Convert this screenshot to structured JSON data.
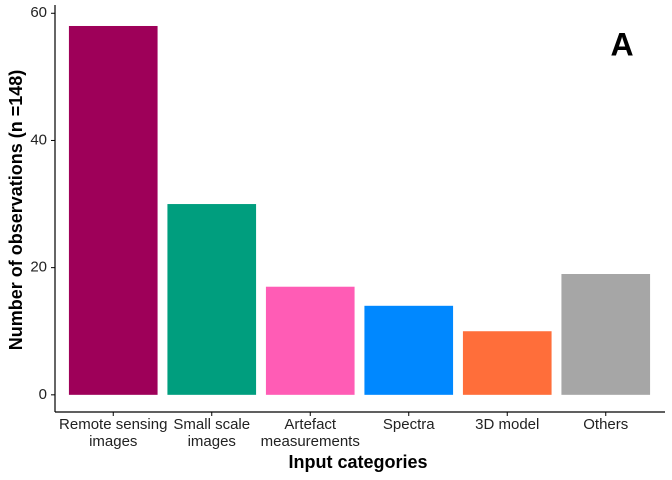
{
  "chart_data": {
    "type": "bar",
    "categories": [
      "Remote sensing\nimages",
      "Small scale\nimages",
      "Artefact\nmeasurements",
      "Spectra",
      "3D model",
      "Others"
    ],
    "values": [
      58,
      30,
      17,
      14,
      10,
      19
    ],
    "colors": [
      "#9e0059",
      "#009e7e",
      "#ff5cb5",
      "#0088ff",
      "#ff6e3a",
      "#a6a6a6"
    ],
    "ylim": [
      -2.7,
      61.3
    ],
    "yticks": [
      0,
      20,
      40,
      60
    ],
    "x_label": "Input categories",
    "y_label": "Number of observations (n =148)",
    "annotation": "A",
    "grid": false
  }
}
